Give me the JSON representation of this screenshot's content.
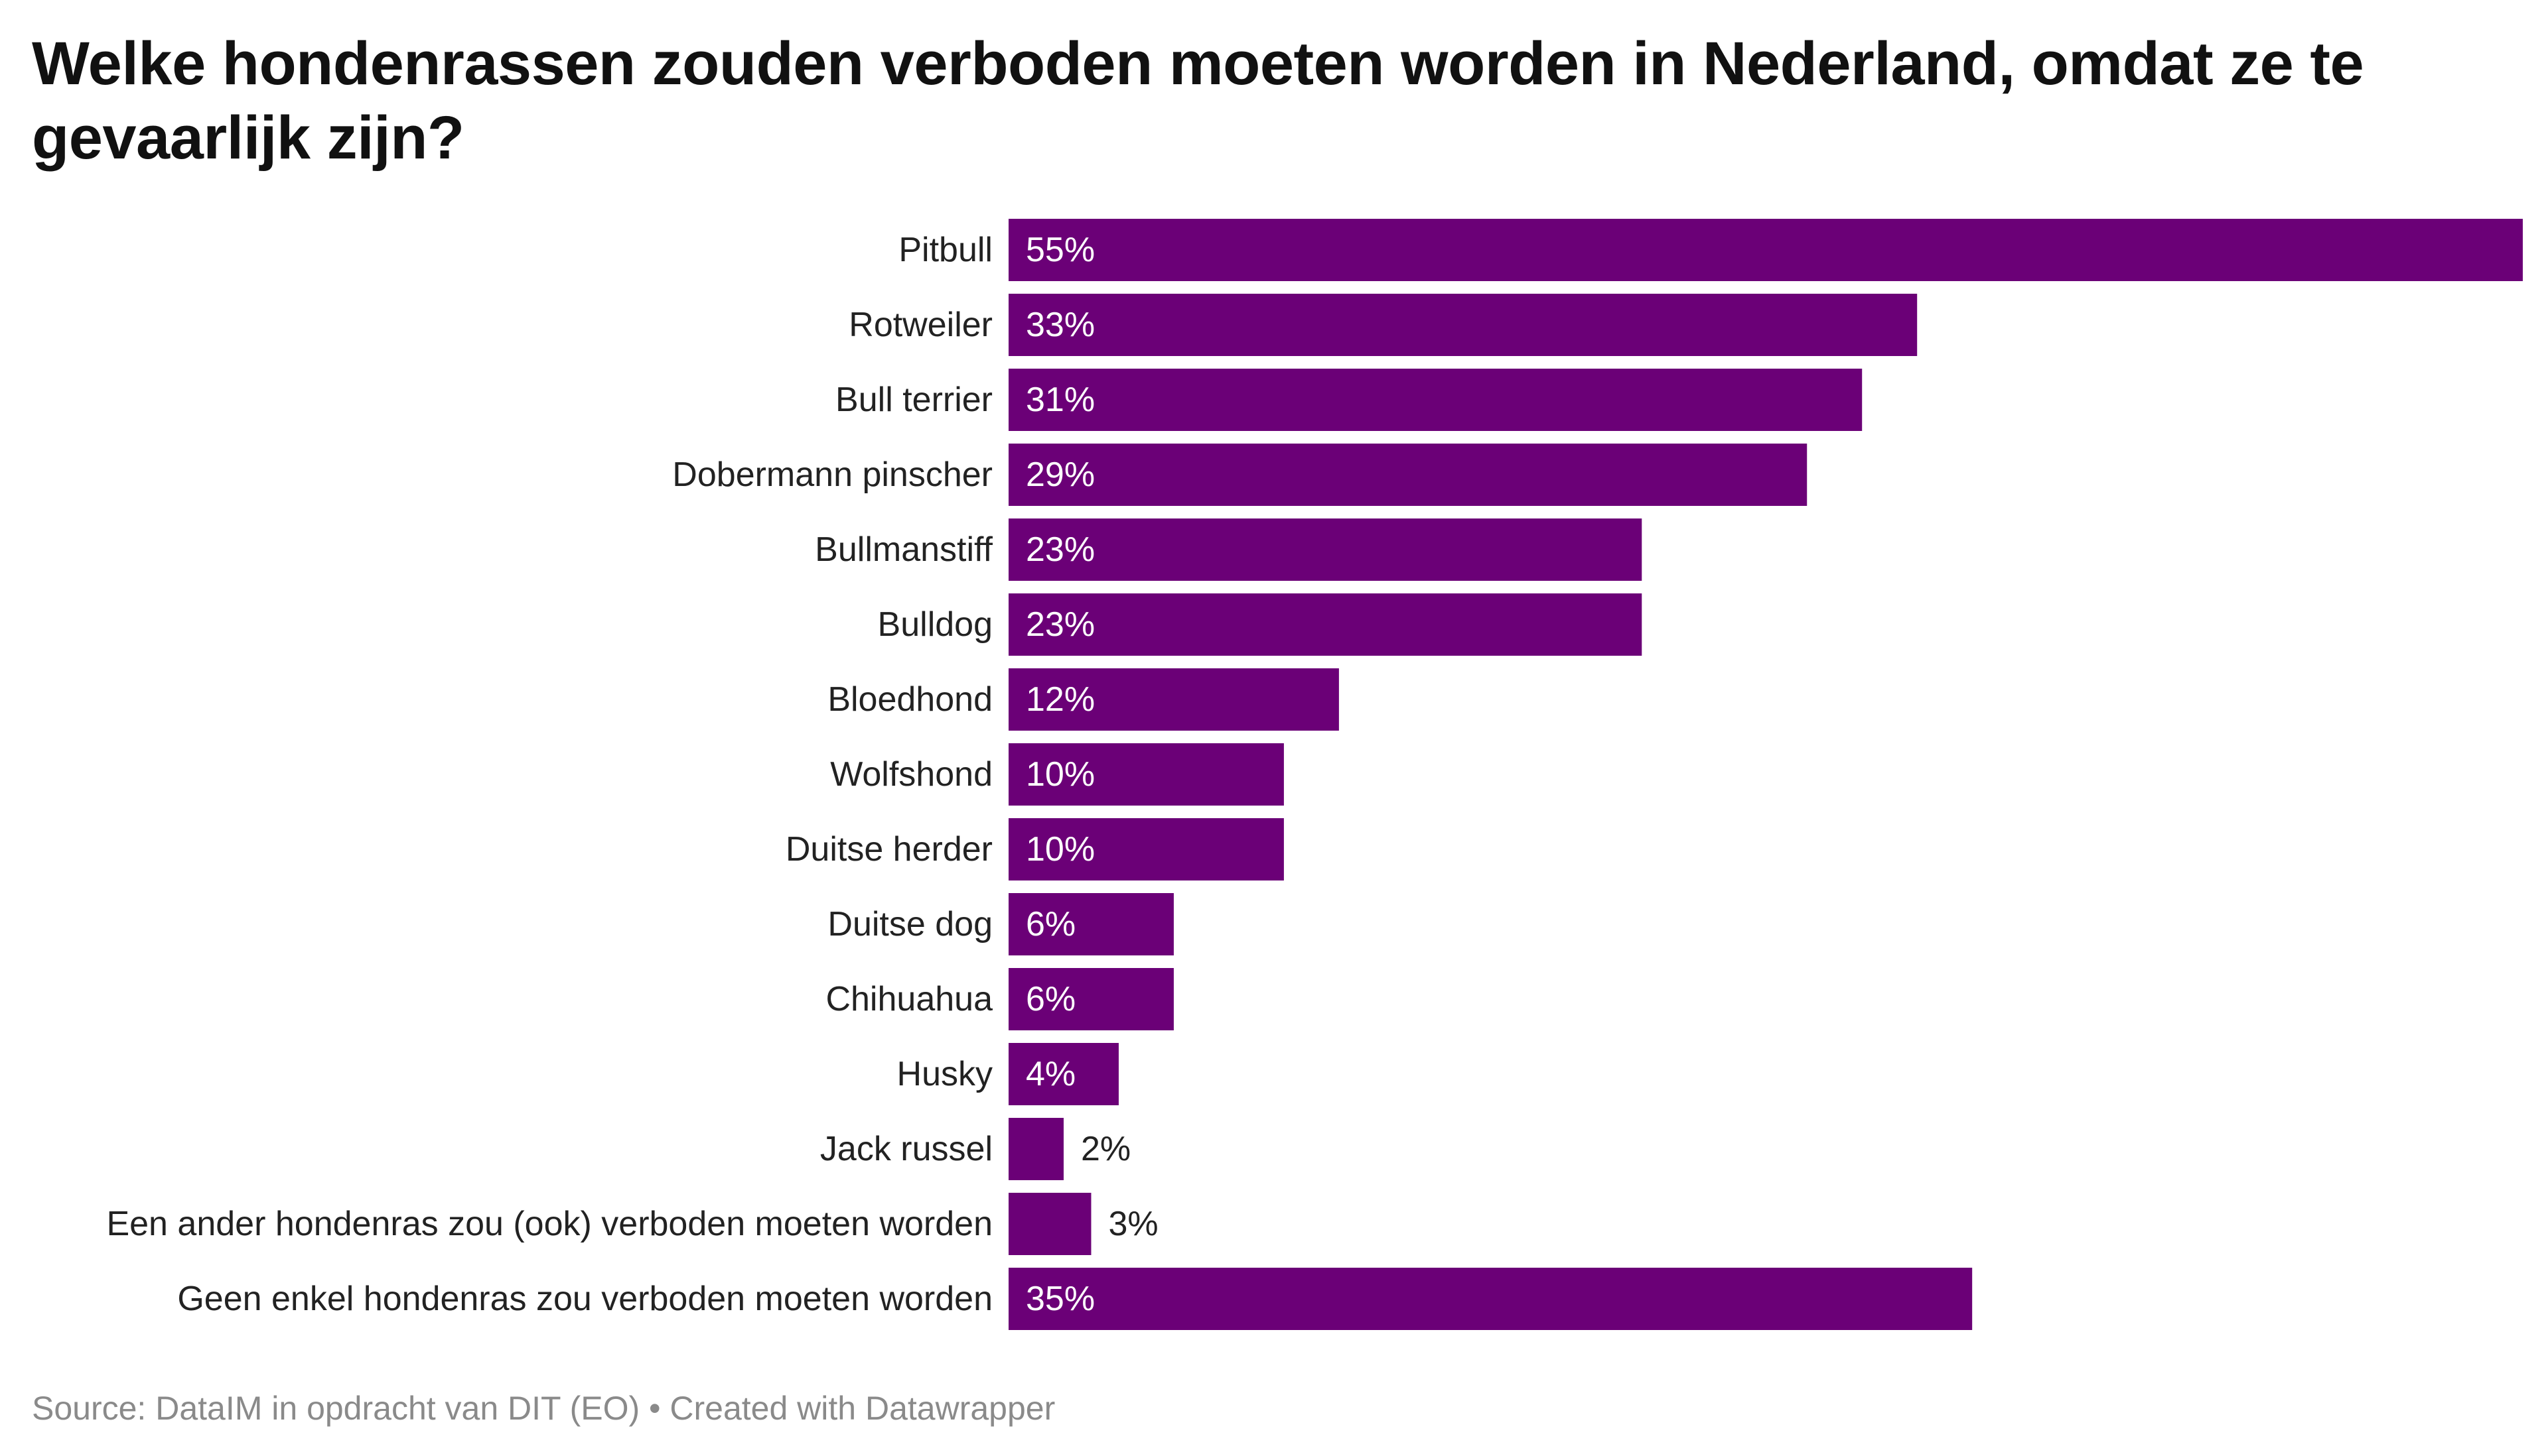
{
  "header": {
    "title": "Welke hondenrassen zouden verboden moeten worden in Nederland, omdat ze te gevaarlijk zijn?"
  },
  "footer": {
    "source": "Source: DataIM in opdracht van DIT (EO) • Created with Datawrapper"
  },
  "colors": {
    "bar": "#6b0077",
    "value_inside": "#ffffff",
    "value_outside": "#222222"
  },
  "chart_data": {
    "type": "bar",
    "orientation": "horizontal",
    "title": "Welke hondenrassen zouden verboden moeten worden in Nederland, omdat ze te gevaarlijk zijn?",
    "xlabel": "",
    "ylabel": "",
    "xlim": [
      0,
      55
    ],
    "grid": false,
    "unit": "%",
    "categories": [
      "Pitbull",
      "Rotweiler",
      "Bull terrier",
      "Dobermann pinscher",
      "Bullmanstiff",
      "Bulldog",
      "Bloedhond",
      "Wolfshond",
      "Duitse herder",
      "Duitse dog",
      "Chihuahua",
      "Husky",
      "Jack russel",
      "Een ander hondenras zou (ook) verboden moeten worden",
      "Geen enkel hondenras zou verboden moeten worden"
    ],
    "values": [
      55,
      33,
      31,
      29,
      23,
      23,
      12,
      10,
      10,
      6,
      6,
      4,
      2,
      3,
      35
    ],
    "value_labels": [
      "55%",
      "33%",
      "31%",
      "29%",
      "23%",
      "23%",
      "12%",
      "10%",
      "10%",
      "6%",
      "6%",
      "4%",
      "2%",
      "3%",
      "35%"
    ]
  }
}
